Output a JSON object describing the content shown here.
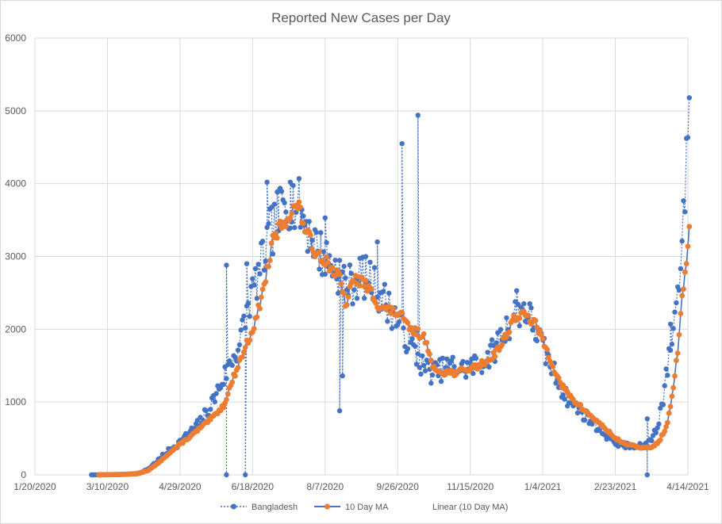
{
  "chart_data": {
    "type": "line",
    "title": "Reported New Cases per Day",
    "xlabel": "",
    "ylabel": "",
    "ylim": [
      0,
      6000
    ],
    "y_ticks": [
      0,
      1000,
      2000,
      3000,
      4000,
      5000,
      6000
    ],
    "x_tick_labels": [
      "1/20/2020",
      "3/10/2020",
      "4/29/2020",
      "6/18/2020",
      "8/7/2020",
      "9/26/2020",
      "11/15/2020",
      "1/4/2021",
      "2/23/2021",
      "4/14/2021"
    ],
    "x_range_days": [
      0,
      450
    ],
    "x_unit": "days since 1/20/2020",
    "series": [
      {
        "name": "Bangladesh",
        "style": "dotted-line-markers",
        "color": "#4472c4",
        "knots": [
          [
            39,
            0
          ],
          [
            55,
            3
          ],
          [
            64,
            10
          ],
          [
            72,
            20
          ],
          [
            78,
            80
          ],
          [
            85,
            200
          ],
          [
            92,
            330
          ],
          [
            100,
            450
          ],
          [
            106,
            560
          ],
          [
            113,
            700
          ],
          [
            120,
            900
          ],
          [
            127,
            1200
          ],
          [
            134,
            1500
          ],
          [
            141,
            1800
          ],
          [
            148,
            2400
          ],
          [
            155,
            2800
          ],
          [
            162,
            3300
          ],
          [
            169,
            3600
          ],
          [
            176,
            3800
          ],
          [
            183,
            3650
          ],
          [
            190,
            3300
          ],
          [
            197,
            3050
          ],
          [
            204,
            2900
          ],
          [
            211,
            2750
          ],
          [
            218,
            2600
          ],
          [
            225,
            2750
          ],
          [
            232,
            2650
          ],
          [
            239,
            2450
          ],
          [
            246,
            2250
          ],
          [
            253,
            2000
          ],
          [
            260,
            1750
          ],
          [
            267,
            1500
          ],
          [
            274,
            1400
          ],
          [
            281,
            1450
          ],
          [
            288,
            1500
          ],
          [
            295,
            1450
          ],
          [
            302,
            1500
          ],
          [
            309,
            1550
          ],
          [
            316,
            1700
          ],
          [
            323,
            1950
          ],
          [
            330,
            2200
          ],
          [
            337,
            2300
          ],
          [
            344,
            2050
          ],
          [
            351,
            1700
          ],
          [
            358,
            1400
          ],
          [
            365,
            1100
          ],
          [
            372,
            950
          ],
          [
            379,
            820
          ],
          [
            386,
            700
          ],
          [
            393,
            560
          ],
          [
            400,
            450
          ],
          [
            407,
            400
          ],
          [
            414,
            380
          ],
          [
            421,
            400
          ],
          [
            428,
            600
          ],
          [
            433,
            1050
          ],
          [
            438,
            1750
          ],
          [
            443,
            2500
          ],
          [
            446,
            3300
          ],
          [
            449,
            4200
          ],
          [
            451,
            5180
          ]
        ],
        "outliers": [
          [
            132,
            0
          ],
          [
            132,
            2880
          ],
          [
            145,
            0
          ],
          [
            146,
            2900
          ],
          [
            160,
            4020
          ],
          [
            168,
            3900
          ],
          [
            176,
            4020
          ],
          [
            200,
            3530
          ],
          [
            210,
            880
          ],
          [
            212,
            1360
          ],
          [
            236,
            3200
          ],
          [
            253,
            4550
          ],
          [
            264,
            4940
          ],
          [
            332,
            2530
          ],
          [
            422,
            0
          ],
          [
            422,
            770
          ],
          [
            438,
            2070
          ]
        ],
        "noise_seed": 7,
        "noise_amplitude": 0.11
      },
      {
        "name": "10 Day MA",
        "style": "solid-line-markers",
        "color": "#ed7d31",
        "line_color": "#4472c4",
        "knots": [
          [
            44,
            0
          ],
          [
            60,
            5
          ],
          [
            70,
            15
          ],
          [
            78,
            60
          ],
          [
            85,
            160
          ],
          [
            92,
            290
          ],
          [
            100,
            420
          ],
          [
            108,
            540
          ],
          [
            115,
            660
          ],
          [
            122,
            780
          ],
          [
            130,
            950
          ],
          [
            138,
            1400
          ],
          [
            145,
            1750
          ],
          [
            152,
            2100
          ],
          [
            158,
            2600
          ],
          [
            164,
            3200
          ],
          [
            170,
            3450
          ],
          [
            177,
            3600
          ],
          [
            181,
            3720
          ],
          [
            186,
            3400
          ],
          [
            192,
            3100
          ],
          [
            198,
            3000
          ],
          [
            204,
            2850
          ],
          [
            210,
            2700
          ],
          [
            214,
            2330
          ],
          [
            220,
            2700
          ],
          [
            226,
            2650
          ],
          [
            232,
            2500
          ],
          [
            238,
            2300
          ],
          [
            246,
            2250
          ],
          [
            252,
            2200
          ],
          [
            258,
            2000
          ],
          [
            264,
            1950
          ],
          [
            270,
            1850
          ],
          [
            274,
            1450
          ],
          [
            282,
            1420
          ],
          [
            290,
            1400
          ],
          [
            298,
            1450
          ],
          [
            306,
            1500
          ],
          [
            314,
            1600
          ],
          [
            322,
            1800
          ],
          [
            330,
            2150
          ],
          [
            337,
            2200
          ],
          [
            344,
            2100
          ],
          [
            350,
            1850
          ],
          [
            356,
            1550
          ],
          [
            362,
            1250
          ],
          [
            370,
            1050
          ],
          [
            378,
            900
          ],
          [
            386,
            760
          ],
          [
            394,
            620
          ],
          [
            400,
            500
          ],
          [
            408,
            420
          ],
          [
            416,
            380
          ],
          [
            424,
            370
          ],
          [
            430,
            450
          ],
          [
            436,
            700
          ],
          [
            440,
            1200
          ],
          [
            443,
            1700
          ],
          [
            446,
            2400
          ],
          [
            449,
            2950
          ],
          [
            451,
            3410
          ]
        ],
        "noise_seed": 13,
        "noise_amplitude": 0.03
      },
      {
        "name": "Linear (10 Day MA)",
        "style": "trendline-hidden",
        "color": "#4472c4"
      }
    ],
    "legend_position": "bottom"
  }
}
